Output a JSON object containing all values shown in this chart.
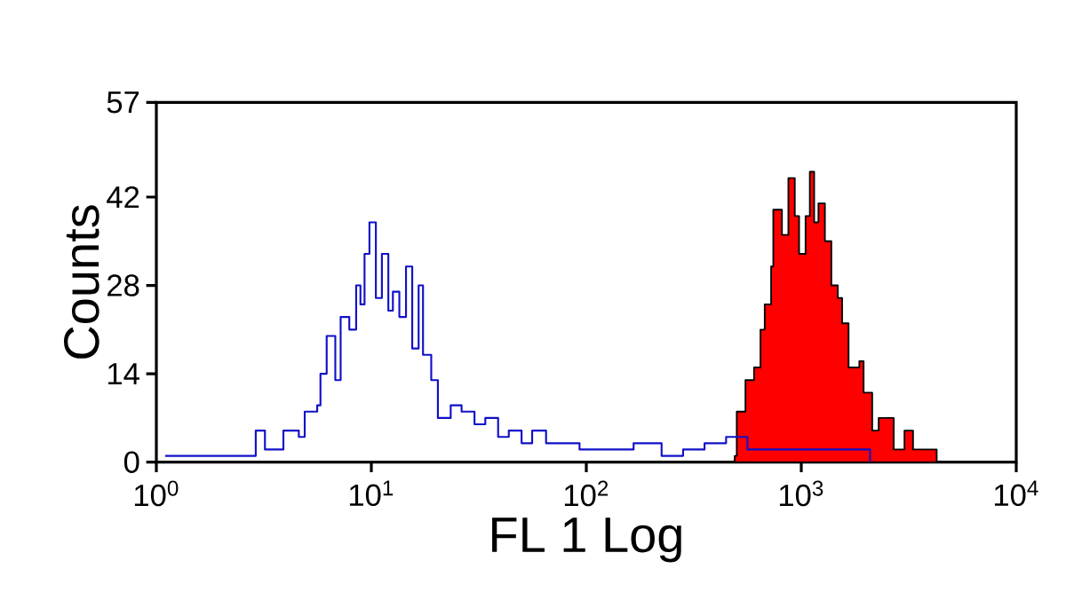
{
  "chart_data": {
    "type": "step",
    "xlabel": "FL 1 Log",
    "ylabel": "Counts",
    "log": "x",
    "xlim": [
      1,
      10000
    ],
    "ylim": [
      0,
      57
    ],
    "xticks": [
      {
        "value": 1,
        "label": "10$^{0}$"
      },
      {
        "value": 10,
        "label": "10$^{1}$"
      },
      {
        "value": 100,
        "label": "10$^{2}$"
      },
      {
        "value": 1000,
        "label": "10$^{3}$"
      },
      {
        "value": 10000,
        "label": "10$^{4}$"
      }
    ],
    "yticks": [
      0,
      14,
      28,
      42,
      57
    ],
    "grid": false,
    "series": [
      {
        "color": "#1010c8",
        "x": [
          1.1,
          1.6,
          2.2,
          2.9,
          3.2,
          3.9,
          4.6,
          4.9,
          5.6,
          5.8,
          6.2,
          6.8,
          7.2,
          7.9,
          8.5,
          8.9,
          9.3,
          9.8,
          10.5,
          11.2,
          12,
          12.6,
          13.5,
          14.5,
          15.5,
          16.6,
          17.4,
          19,
          20.4,
          23.4,
          26.3,
          30.2,
          33.9,
          38.9,
          43.6,
          50,
          56,
          65,
          78,
          93,
          120,
          166,
          224,
          282,
          355,
          447,
          562,
          794,
          1122,
          1585,
          2089
        ],
        "values": [
          1,
          1,
          1,
          5,
          2,
          5,
          4,
          8,
          9,
          14,
          20,
          13,
          23,
          21,
          28,
          25,
          33,
          38,
          26,
          33,
          24,
          27,
          23,
          31,
          18,
          28,
          17,
          13,
          7,
          9,
          8,
          6,
          7,
          4,
          5,
          3,
          5,
          3,
          3,
          2,
          2,
          3,
          1,
          2,
          3,
          4,
          2,
          2,
          2,
          2,
          0
        ]
      },
      {
        "type": "area",
        "color": "#ff0000",
        "x": [
          490,
          501,
          550,
          603,
          646,
          676,
          724,
          741,
          813,
          871,
          933,
          977,
          1047,
          1096,
          1148,
          1202,
          1288,
          1380,
          1479,
          1549,
          1660,
          1862,
          1950,
          2138,
          2291,
          2512,
          2692,
          3020,
          3311,
          3981,
          4266
        ],
        "values": [
          1,
          8,
          13,
          15,
          21,
          25,
          31,
          40,
          36,
          45,
          39,
          33,
          39,
          46,
          38,
          41,
          35,
          28,
          26,
          22,
          15,
          16,
          11,
          5,
          7,
          7,
          2,
          5,
          2,
          2,
          0
        ]
      }
    ]
  }
}
